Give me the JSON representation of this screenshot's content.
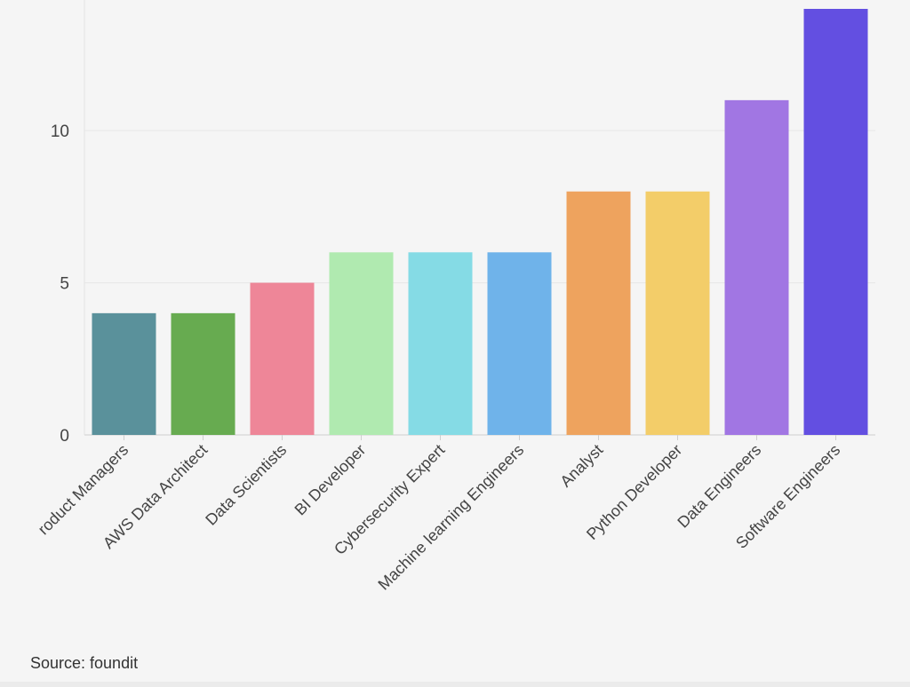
{
  "chart_data": {
    "type": "bar",
    "categories": [
      "roduct Managers",
      "AWS Data Architect",
      "Data Scientists",
      "BI Developer",
      "Cybersecurity Expert",
      "Machine learning Engineers",
      "Analyst",
      "Python Developer",
      "Data Engineers",
      "Software Engineers"
    ],
    "values": [
      4,
      4,
      5,
      6,
      6,
      6,
      8,
      8,
      11,
      14
    ],
    "colors": [
      "#5a919b",
      "#67ab50",
      "#ee8698",
      "#b0eab0",
      "#85dbe5",
      "#6fb3ea",
      "#eea35e",
      "#f3cd69",
      "#a176e3",
      "#634fe1"
    ],
    "yticks": [
      0,
      5,
      10
    ],
    "ylim": [
      0,
      14
    ],
    "grid": true,
    "title": "",
    "xlabel": "",
    "ylabel": ""
  },
  "source": "Source: foundit"
}
